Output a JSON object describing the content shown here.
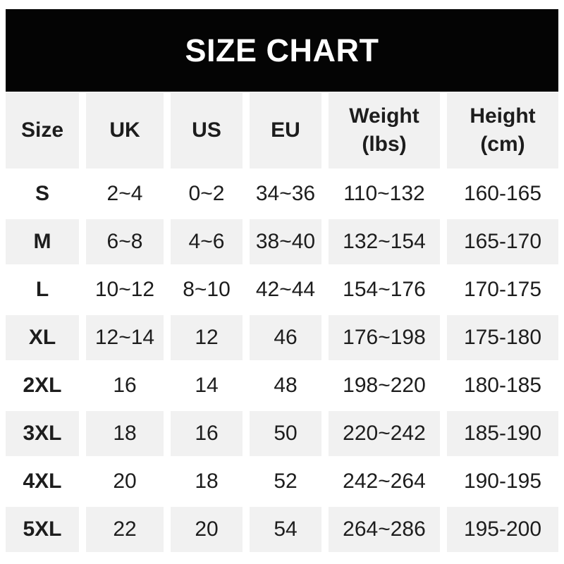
{
  "banner": {
    "title": "SIZE CHART"
  },
  "colors": {
    "banner_bg": "#040404",
    "banner_text": "#ffffff",
    "shaded_cell_bg": "#f1f1f1",
    "page_bg": "#ffffff",
    "text": "#1d1d1d"
  },
  "table": {
    "header": [
      "Size",
      "UK",
      "US",
      "EU",
      "Weight\n(lbs)",
      "Height\n(cm)"
    ],
    "rows": [
      {
        "cells": [
          "S",
          "2~4",
          "0~2",
          "34~36",
          "110~132",
          "160-165"
        ]
      },
      {
        "cells": [
          "M",
          "6~8",
          "4~6",
          "38~40",
          "132~154",
          "165-170"
        ]
      },
      {
        "cells": [
          "L",
          "10~12",
          "8~10",
          "42~44",
          "154~176",
          "170-175"
        ]
      },
      {
        "cells": [
          "XL",
          "12~14",
          "12",
          "46",
          "176~198",
          "175-180"
        ]
      },
      {
        "cells": [
          "2XL",
          "16",
          "14",
          "48",
          "198~220",
          "180-185"
        ]
      },
      {
        "cells": [
          "3XL",
          "18",
          "16",
          "50",
          "220~242",
          "185-190"
        ]
      },
      {
        "cells": [
          "4XL",
          "20",
          "18",
          "52",
          "242~264",
          "190-195"
        ]
      },
      {
        "cells": [
          "5XL",
          "22",
          "20",
          "54",
          "264~286",
          "195-200"
        ]
      }
    ]
  },
  "chart_data": {
    "type": "table",
    "title": "SIZE CHART",
    "columns": [
      "Size",
      "UK",
      "US",
      "EU",
      "Weight (lbs)",
      "Height (cm)"
    ],
    "rows": [
      [
        "S",
        "2~4",
        "0~2",
        "34~36",
        "110~132",
        "160-165"
      ],
      [
        "M",
        "6~8",
        "4~6",
        "38~40",
        "132~154",
        "165-170"
      ],
      [
        "L",
        "10~12",
        "8~10",
        "42~44",
        "154~176",
        "170-175"
      ],
      [
        "XL",
        "12~14",
        "12",
        "46",
        "176~198",
        "175-180"
      ],
      [
        "2XL",
        "16",
        "14",
        "48",
        "198~220",
        "180-185"
      ],
      [
        "3XL",
        "18",
        "16",
        "50",
        "220~242",
        "185-190"
      ],
      [
        "4XL",
        "20",
        "18",
        "52",
        "242~264",
        "190-195"
      ],
      [
        "5XL",
        "22",
        "20",
        "54",
        "264~286",
        "195-200"
      ]
    ],
    "layout": {
      "header_shaded": true,
      "shaded_data_rows": [
        "M",
        "XL",
        "3XL",
        "5XL"
      ],
      "cell_gutter_color": "#ffffff"
    }
  }
}
